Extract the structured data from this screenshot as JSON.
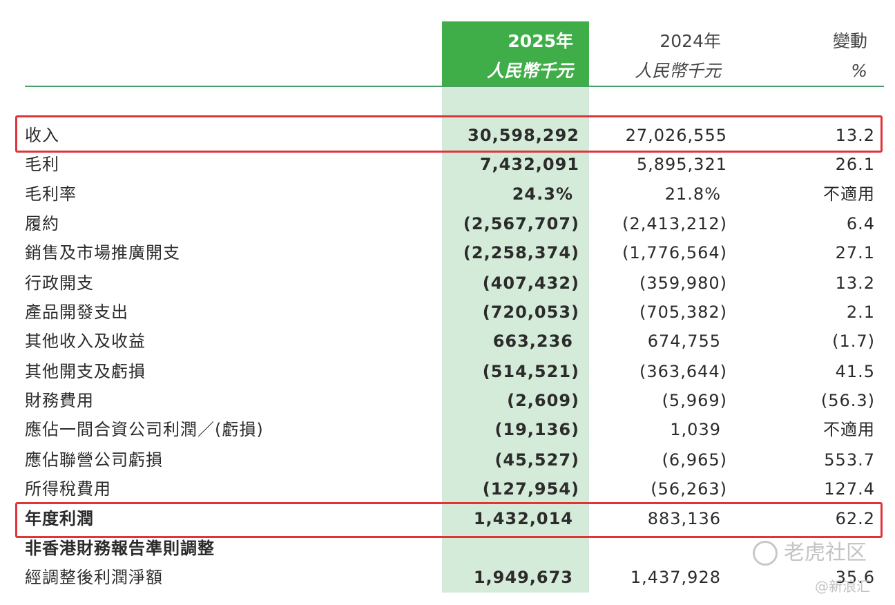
{
  "header": {
    "col_current_year": "2025年",
    "col_current_unit": "人民幣千元",
    "col_prior_year": "2024年",
    "col_prior_unit": "人民幣千元",
    "col_change": "變動",
    "col_change_unit": "%"
  },
  "rows": [
    {
      "label": "收入",
      "current": "30,598,292",
      "prior": "27,026,555",
      "change": "13.2"
    },
    {
      "label": "毛利",
      "current": "7,432,091",
      "prior": "5,895,321",
      "change": "26.1"
    },
    {
      "label": "毛利率",
      "current": "24.3%",
      "prior": "21.8%",
      "change": "不適用"
    },
    {
      "label": "履約",
      "current": "(2,567,707)",
      "prior": "(2,413,212)",
      "change": "6.4"
    },
    {
      "label": "銷售及市場推廣開支",
      "current": "(2,258,374)",
      "prior": "(1,776,564)",
      "change": "27.1"
    },
    {
      "label": "行政開支",
      "current": "(407,432)",
      "prior": "(359,980)",
      "change": "13.2"
    },
    {
      "label": "產品開發支出",
      "current": "(720,053)",
      "prior": "(705,382)",
      "change": "2.1"
    },
    {
      "label": "其他收入及收益",
      "current": "663,236",
      "prior": "674,755",
      "change": "(1.7)"
    },
    {
      "label": "其他開支及虧損",
      "current": "(514,521)",
      "prior": "(363,644)",
      "change": "41.5"
    },
    {
      "label": "財務費用",
      "current": "(2,609)",
      "prior": "(5,969)",
      "change": "(56.3)"
    },
    {
      "label": "應佔一間合資公司利潤／(虧損)",
      "current": "(19,136)",
      "prior": "1,039",
      "change": "不適用"
    },
    {
      "label": "應佔聯營公司虧損",
      "current": "(45,527)",
      "prior": "(6,965)",
      "change": "553.7"
    },
    {
      "label": "所得稅費用",
      "current": "(127,954)",
      "prior": "(56,263)",
      "change": "127.4"
    },
    {
      "label": "年度利潤",
      "current": "1,432,014",
      "prior": "883,136",
      "change": "62.2"
    },
    {
      "label": "非香港財務報告準則調整",
      "current": "",
      "prior": "",
      "change": ""
    },
    {
      "label": "經調整後利潤淨額",
      "current": "1,949,673",
      "prior": "1,437,928",
      "change": "35.6"
    }
  ],
  "watermark": {
    "brand": "老虎社区",
    "source": "@新浪汇"
  },
  "colors": {
    "accent_green": "#3fae49",
    "column_tint": "#d5ebd9",
    "highlight_red": "#e0333a"
  }
}
